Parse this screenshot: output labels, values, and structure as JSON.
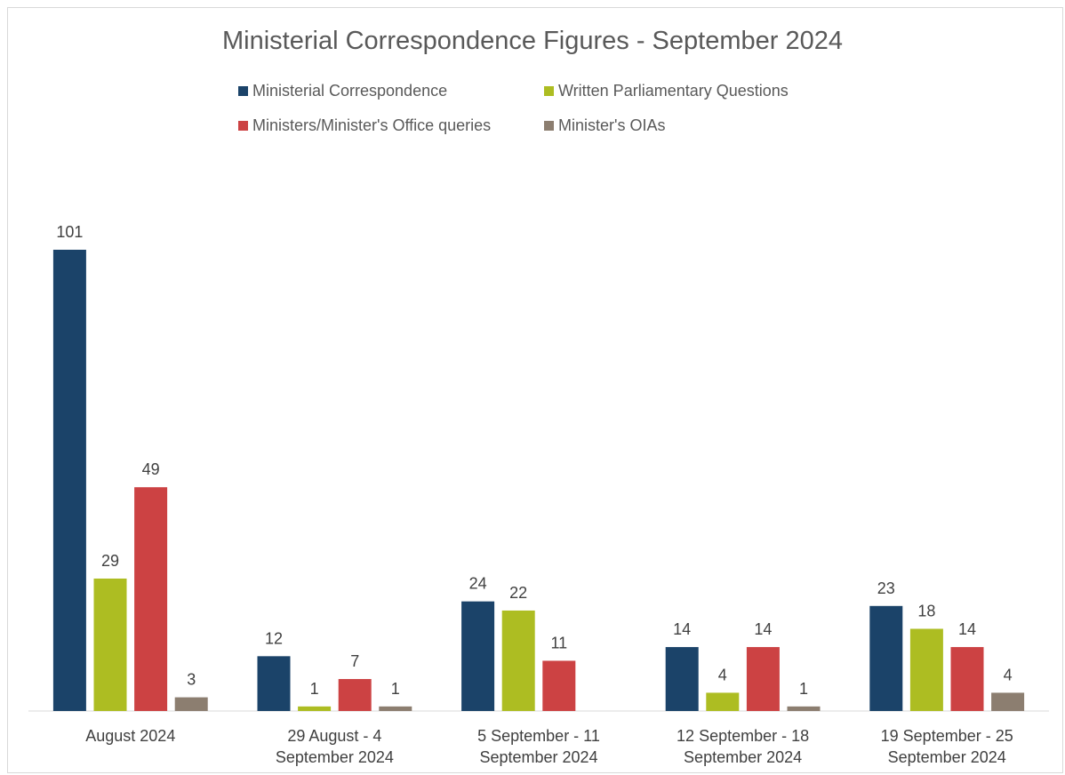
{
  "chart_data": {
    "type": "bar",
    "title": "Ministerial Correspondence Figures - September 2024",
    "categories": [
      [
        "August 2024"
      ],
      [
        "29 August - 4",
        "September 2024"
      ],
      [
        "5 September - 11",
        "September 2024"
      ],
      [
        "12 September - 18",
        "September 2024"
      ],
      [
        "19 September - 25",
        "September 2024"
      ]
    ],
    "series": [
      {
        "name": "Ministerial Correspondence",
        "color": "#1b4369",
        "values": [
          101,
          12,
          24,
          14,
          23
        ]
      },
      {
        "name": "Written Parliamentary Questions",
        "color": "#adbd22",
        "values": [
          29,
          1,
          22,
          4,
          18
        ]
      },
      {
        "name": "Ministers/Minister's Office queries",
        "color": "#cc4243",
        "values": [
          49,
          7,
          11,
          14,
          14
        ]
      },
      {
        "name": "Minister's OIAs",
        "color": "#8c7e70",
        "values": [
          3,
          1,
          null,
          1,
          4
        ]
      }
    ],
    "ylim": [
      0,
      101
    ],
    "grid": false,
    "legend": "top"
  }
}
